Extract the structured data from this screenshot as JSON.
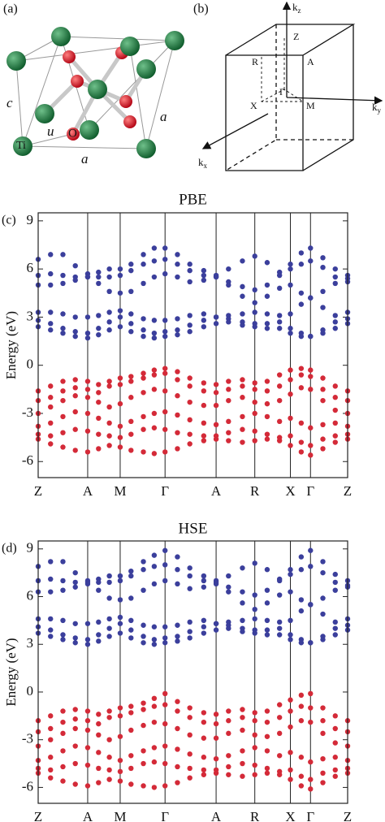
{
  "diagrams": {
    "a": {
      "label": "(a)",
      "annotations": [
        "c",
        "u",
        "O",
        "Ti",
        "a",
        "a"
      ]
    },
    "b": {
      "label": "(b)",
      "axes": [
        {
          "base": "k",
          "sub": "z"
        },
        {
          "base": "k",
          "sub": "y"
        },
        {
          "base": "k",
          "sub": "x"
        }
      ],
      "points": [
        "Z",
        "R",
        "A",
        "Γ",
        "X",
        "M"
      ]
    }
  },
  "chart_data": [
    {
      "type": "scatter",
      "panel_label": "(c)",
      "title": "PBE",
      "ylabel": "Energy (eV)",
      "xlim": [
        0,
        1
      ],
      "ylim": [
        -7,
        9.5
      ],
      "xticks": [
        {
          "value": 0,
          "label": "Z"
        },
        {
          "value": 0.16,
          "label": "A"
        },
        {
          "value": 0.265,
          "label": "M"
        },
        {
          "value": 0.41,
          "label": "Γ"
        },
        {
          "value": 0.575,
          "label": "A"
        },
        {
          "value": 0.7,
          "label": "R"
        },
        {
          "value": 0.815,
          "label": "X"
        },
        {
          "value": 0.88,
          "label": "Γ"
        },
        {
          "value": 1,
          "label": "Z"
        }
      ],
      "yticks": [
        9,
        6,
        3,
        0,
        -3,
        -6
      ],
      "x": [
        0,
        0.04,
        0.08,
        0.12,
        0.16,
        0.195,
        0.23,
        0.265,
        0.3,
        0.34,
        0.375,
        0.41,
        0.45,
        0.49,
        0.535,
        0.575,
        0.615,
        0.66,
        0.7,
        0.74,
        0.78,
        0.815,
        0.85,
        0.88,
        0.92,
        0.96,
        1
      ],
      "series": [
        {
          "color": "#3b3f9c",
          "values": [
            6.6,
            6.9,
            6.9,
            6.2,
            5.7,
            5.8,
            6.0,
            6.0,
            6.3,
            6.9,
            7.3,
            7.3,
            6.9,
            6.3,
            5.9,
            5.6,
            6.0,
            6.5,
            6.8,
            6.4,
            5.8,
            6.3,
            7.0,
            7.3,
            6.7,
            6.0,
            5.6
          ]
        },
        {
          "color": "#3b3f9c",
          "values": [
            5.6,
            5.7,
            5.6,
            5.5,
            5.5,
            5.5,
            5.5,
            5.6,
            5.9,
            6.3,
            6.5,
            6.6,
            6.3,
            5.9,
            5.6,
            5.5,
            5.2,
            4.9,
            4.7,
            5.0,
            5.6,
            6.0,
            6.3,
            6.5,
            6.1,
            5.5,
            5.2
          ]
        },
        {
          "color": "#3b3f9c",
          "values": [
            5.0,
            5.0,
            5.1,
            5.3,
            5.5,
            5.1,
            4.6,
            4.5,
            4.6,
            5.1,
            5.5,
            5.7,
            5.5,
            5.2,
            5.3,
            5.5,
            5.0,
            4.3,
            3.9,
            4.3,
            4.8,
            5.0,
            4.5,
            4.2,
            4.6,
            5.1,
            5.4
          ]
        },
        {
          "color": "#3b3f9c",
          "values": [
            3.3,
            3.3,
            3.2,
            3.0,
            3.0,
            3.1,
            3.3,
            3.4,
            3.2,
            2.9,
            2.8,
            2.8,
            2.9,
            3.1,
            3.2,
            3.0,
            3.1,
            3.2,
            3.3,
            3.2,
            3.1,
            3.2,
            3.8,
            4.2,
            3.6,
            3.1,
            3.3
          ]
        },
        {
          "color": "#3b3f9c",
          "values": [
            2.8,
            2.6,
            2.3,
            2.1,
            2.0,
            2.3,
            2.7,
            3.0,
            2.6,
            2.2,
            2.0,
            2.1,
            2.2,
            2.5,
            2.8,
            3.0,
            2.9,
            2.7,
            2.6,
            2.6,
            2.7,
            2.3,
            2.0,
            1.8,
            2.2,
            2.7,
            2.9
          ]
        },
        {
          "color": "#3b3f9c",
          "values": [
            2.4,
            2.2,
            2.0,
            1.8,
            1.7,
            1.9,
            2.2,
            2.4,
            2.1,
            1.8,
            1.7,
            1.8,
            1.9,
            2.1,
            2.4,
            2.6,
            2.7,
            2.5,
            2.4,
            2.3,
            2.3,
            2.0,
            1.8,
            1.8,
            2.0,
            2.3,
            2.6
          ]
        },
        {
          "color": "#d42a38",
          "values": [
            -1.6,
            -1.3,
            -1.0,
            -0.9,
            -1.0,
            -1.2,
            -1.0,
            -0.8,
            -0.7,
            -0.5,
            -0.3,
            -0.2,
            -0.4,
            -0.8,
            -1.1,
            -1.2,
            -1.0,
            -0.9,
            -1.1,
            -1.0,
            -0.6,
            -0.3,
            -0.2,
            -0.3,
            -0.8,
            -1.3,
            -1.6
          ]
        },
        {
          "color": "#d42a38",
          "values": [
            -2.2,
            -2.0,
            -1.6,
            -1.4,
            -1.5,
            -1.7,
            -1.3,
            -1.2,
            -1.0,
            -0.8,
            -0.6,
            -0.5,
            -0.9,
            -1.3,
            -1.6,
            -1.7,
            -1.5,
            -1.3,
            -1.5,
            -1.6,
            -1.3,
            -0.9,
            -0.6,
            -0.7,
            -1.5,
            -2.0,
            -2.2
          ]
        },
        {
          "color": "#d42a38",
          "values": [
            -3.0,
            -2.6,
            -2.2,
            -1.9,
            -2.0,
            -2.3,
            -2.6,
            -2.4,
            -2.0,
            -1.7,
            -1.5,
            -1.6,
            -1.9,
            -2.3,
            -2.5,
            -2.5,
            -2.2,
            -2.0,
            -2.3,
            -2.4,
            -2.2,
            -1.8,
            -1.4,
            -1.5,
            -2.2,
            -2.8,
            -3.0
          ]
        },
        {
          "color": "#d42a38",
          "values": [
            -3.8,
            -3.6,
            -3.2,
            -2.9,
            -3.0,
            -3.3,
            -3.6,
            -3.8,
            -3.5,
            -3.2,
            -3.0,
            -2.9,
            -3.1,
            -3.4,
            -3.6,
            -3.7,
            -3.5,
            -3.2,
            -3.0,
            -3.2,
            -3.5,
            -3.3,
            -3.6,
            -3.9,
            -3.7,
            -3.6,
            -3.8
          ]
        },
        {
          "color": "#d42a38",
          "values": [
            -4.3,
            -4.4,
            -4.2,
            -4.0,
            -4.1,
            -4.3,
            -4.4,
            -4.5,
            -4.3,
            -4.0,
            -3.9,
            -4.0,
            -4.2,
            -4.3,
            -4.4,
            -4.4,
            -4.2,
            -4.0,
            -4.1,
            -4.3,
            -4.5,
            -4.4,
            -4.8,
            -5.0,
            -4.6,
            -4.4,
            -4.3
          ]
        },
        {
          "color": "#d42a38",
          "values": [
            -4.6,
            -4.9,
            -5.1,
            -5.3,
            -5.4,
            -5.2,
            -5.0,
            -5.1,
            -5.3,
            -5.4,
            -5.5,
            -5.4,
            -5.2,
            -4.9,
            -4.7,
            -4.6,
            -4.7,
            -4.8,
            -4.7,
            -4.6,
            -4.7,
            -5.0,
            -5.4,
            -5.6,
            -5.2,
            -4.8,
            -4.6
          ]
        }
      ]
    },
    {
      "type": "scatter",
      "panel_label": "(d)",
      "title": "HSE",
      "ylabel": "Energy (eV)",
      "xlim": [
        0,
        1
      ],
      "ylim": [
        -7,
        9.5
      ],
      "xticks": [
        {
          "value": 0,
          "label": "Z"
        },
        {
          "value": 0.16,
          "label": "A"
        },
        {
          "value": 0.265,
          "label": "M"
        },
        {
          "value": 0.41,
          "label": "Γ"
        },
        {
          "value": 0.575,
          "label": "A"
        },
        {
          "value": 0.7,
          "label": "R"
        },
        {
          "value": 0.815,
          "label": "X"
        },
        {
          "value": 0.88,
          "label": "Γ"
        },
        {
          "value": 1,
          "label": "Z"
        }
      ],
      "yticks": [
        9,
        6,
        3,
        0,
        -3,
        -6
      ],
      "x": [
        0,
        0.04,
        0.08,
        0.12,
        0.16,
        0.195,
        0.23,
        0.265,
        0.3,
        0.34,
        0.375,
        0.41,
        0.45,
        0.49,
        0.535,
        0.575,
        0.615,
        0.66,
        0.7,
        0.74,
        0.78,
        0.815,
        0.85,
        0.88,
        0.92,
        0.96,
        1
      ],
      "series": [
        {
          "color": "#3b3f9c",
          "values": [
            7.9,
            8.2,
            8.2,
            7.5,
            7.0,
            7.1,
            7.3,
            7.3,
            7.6,
            8.2,
            8.6,
            8.9,
            8.5,
            7.8,
            7.3,
            7.0,
            7.3,
            7.8,
            8.1,
            7.7,
            7.1,
            7.7,
            8.5,
            8.9,
            8.2,
            7.4,
            7.0
          ]
        },
        {
          "color": "#3b3f9c",
          "values": [
            7.0,
            7.1,
            7.0,
            6.9,
            6.9,
            6.9,
            6.9,
            7.0,
            7.3,
            7.7,
            7.9,
            8.0,
            7.7,
            7.3,
            7.0,
            6.9,
            6.6,
            6.3,
            6.1,
            6.4,
            7.0,
            7.4,
            7.7,
            7.9,
            7.5,
            6.9,
            6.6
          ]
        },
        {
          "color": "#3b3f9c",
          "values": [
            6.3,
            6.3,
            6.4,
            6.6,
            6.8,
            6.4,
            5.9,
            5.8,
            5.9,
            6.4,
            6.8,
            7.0,
            6.8,
            6.5,
            6.6,
            6.8,
            6.3,
            5.6,
            5.2,
            5.6,
            6.1,
            6.3,
            5.8,
            5.5,
            5.9,
            6.4,
            6.7
          ]
        },
        {
          "color": "#3b3f9c",
          "values": [
            4.6,
            4.6,
            4.5,
            4.3,
            4.3,
            4.4,
            4.6,
            4.7,
            4.5,
            4.2,
            4.1,
            4.1,
            4.2,
            4.4,
            4.5,
            4.3,
            4.4,
            4.5,
            4.6,
            4.5,
            4.4,
            4.5,
            5.1,
            5.5,
            4.9,
            4.4,
            4.6
          ]
        },
        {
          "color": "#3b3f9c",
          "values": [
            4.1,
            3.9,
            3.6,
            3.4,
            3.3,
            3.6,
            4.0,
            4.3,
            3.9,
            3.5,
            3.3,
            3.4,
            3.5,
            3.8,
            4.1,
            4.3,
            4.2,
            4.0,
            3.9,
            3.9,
            4.0,
            3.6,
            3.3,
            3.1,
            3.5,
            4.0,
            4.2
          ]
        },
        {
          "color": "#3b3f9c",
          "values": [
            3.7,
            3.5,
            3.3,
            3.1,
            3.0,
            3.2,
            3.5,
            3.7,
            3.4,
            3.1,
            3.0,
            3.1,
            3.2,
            3.4,
            3.7,
            3.9,
            4.0,
            3.8,
            3.7,
            3.6,
            3.6,
            3.3,
            3.1,
            3.1,
            3.3,
            3.6,
            3.9
          ]
        },
        {
          "color": "#d42a38",
          "values": [
            -1.8,
            -1.5,
            -1.2,
            -1.1,
            -1.2,
            -1.4,
            -1.2,
            -1.0,
            -0.9,
            -0.7,
            -0.4,
            -0.1,
            -0.6,
            -1.0,
            -1.3,
            -1.4,
            -1.2,
            -1.1,
            -1.3,
            -1.2,
            -0.8,
            -0.5,
            -0.2,
            -0.1,
            -1.0,
            -1.5,
            -1.8
          ]
        },
        {
          "color": "#d42a38",
          "values": [
            -2.5,
            -2.3,
            -1.9,
            -1.7,
            -1.8,
            -2.0,
            -1.6,
            -1.5,
            -1.3,
            -1.1,
            -0.9,
            -0.8,
            -1.2,
            -1.6,
            -1.9,
            -2.0,
            -1.8,
            -1.6,
            -1.8,
            -1.9,
            -1.6,
            -1.2,
            -0.9,
            -1.0,
            -1.8,
            -2.3,
            -2.5
          ]
        },
        {
          "color": "#d42a38",
          "values": [
            -3.4,
            -3.0,
            -2.6,
            -2.3,
            -2.4,
            -2.7,
            -3.0,
            -2.8,
            -2.4,
            -2.1,
            -1.9,
            -2.0,
            -2.3,
            -2.7,
            -2.9,
            -2.9,
            -2.6,
            -2.4,
            -2.7,
            -2.8,
            -2.6,
            -2.2,
            -1.8,
            -1.9,
            -2.6,
            -3.2,
            -3.4
          ]
        },
        {
          "color": "#d42a38",
          "values": [
            -4.3,
            -4.1,
            -3.7,
            -3.4,
            -3.5,
            -3.8,
            -4.1,
            -4.3,
            -4.0,
            -3.7,
            -3.5,
            -3.4,
            -3.6,
            -3.9,
            -4.1,
            -4.2,
            -4.0,
            -3.7,
            -3.5,
            -3.7,
            -4.0,
            -3.8,
            -4.1,
            -4.4,
            -4.2,
            -4.1,
            -4.3
          ]
        },
        {
          "color": "#d42a38",
          "values": [
            -4.8,
            -4.9,
            -4.7,
            -4.5,
            -4.6,
            -4.8,
            -4.9,
            -5.0,
            -4.8,
            -4.5,
            -4.4,
            -4.5,
            -4.7,
            -4.8,
            -4.9,
            -4.9,
            -4.7,
            -4.5,
            -4.6,
            -4.8,
            -5.0,
            -4.9,
            -5.3,
            -5.5,
            -5.1,
            -4.9,
            -4.8
          ]
        },
        {
          "color": "#d42a38",
          "values": [
            -5.1,
            -5.4,
            -5.6,
            -5.8,
            -5.9,
            -5.7,
            -5.5,
            -5.6,
            -5.8,
            -5.9,
            -6.0,
            -5.9,
            -5.7,
            -5.4,
            -5.2,
            -5.1,
            -5.2,
            -5.3,
            -5.2,
            -5.1,
            -5.2,
            -5.5,
            -5.9,
            -6.1,
            -5.7,
            -5.3,
            -5.1
          ]
        }
      ]
    }
  ]
}
